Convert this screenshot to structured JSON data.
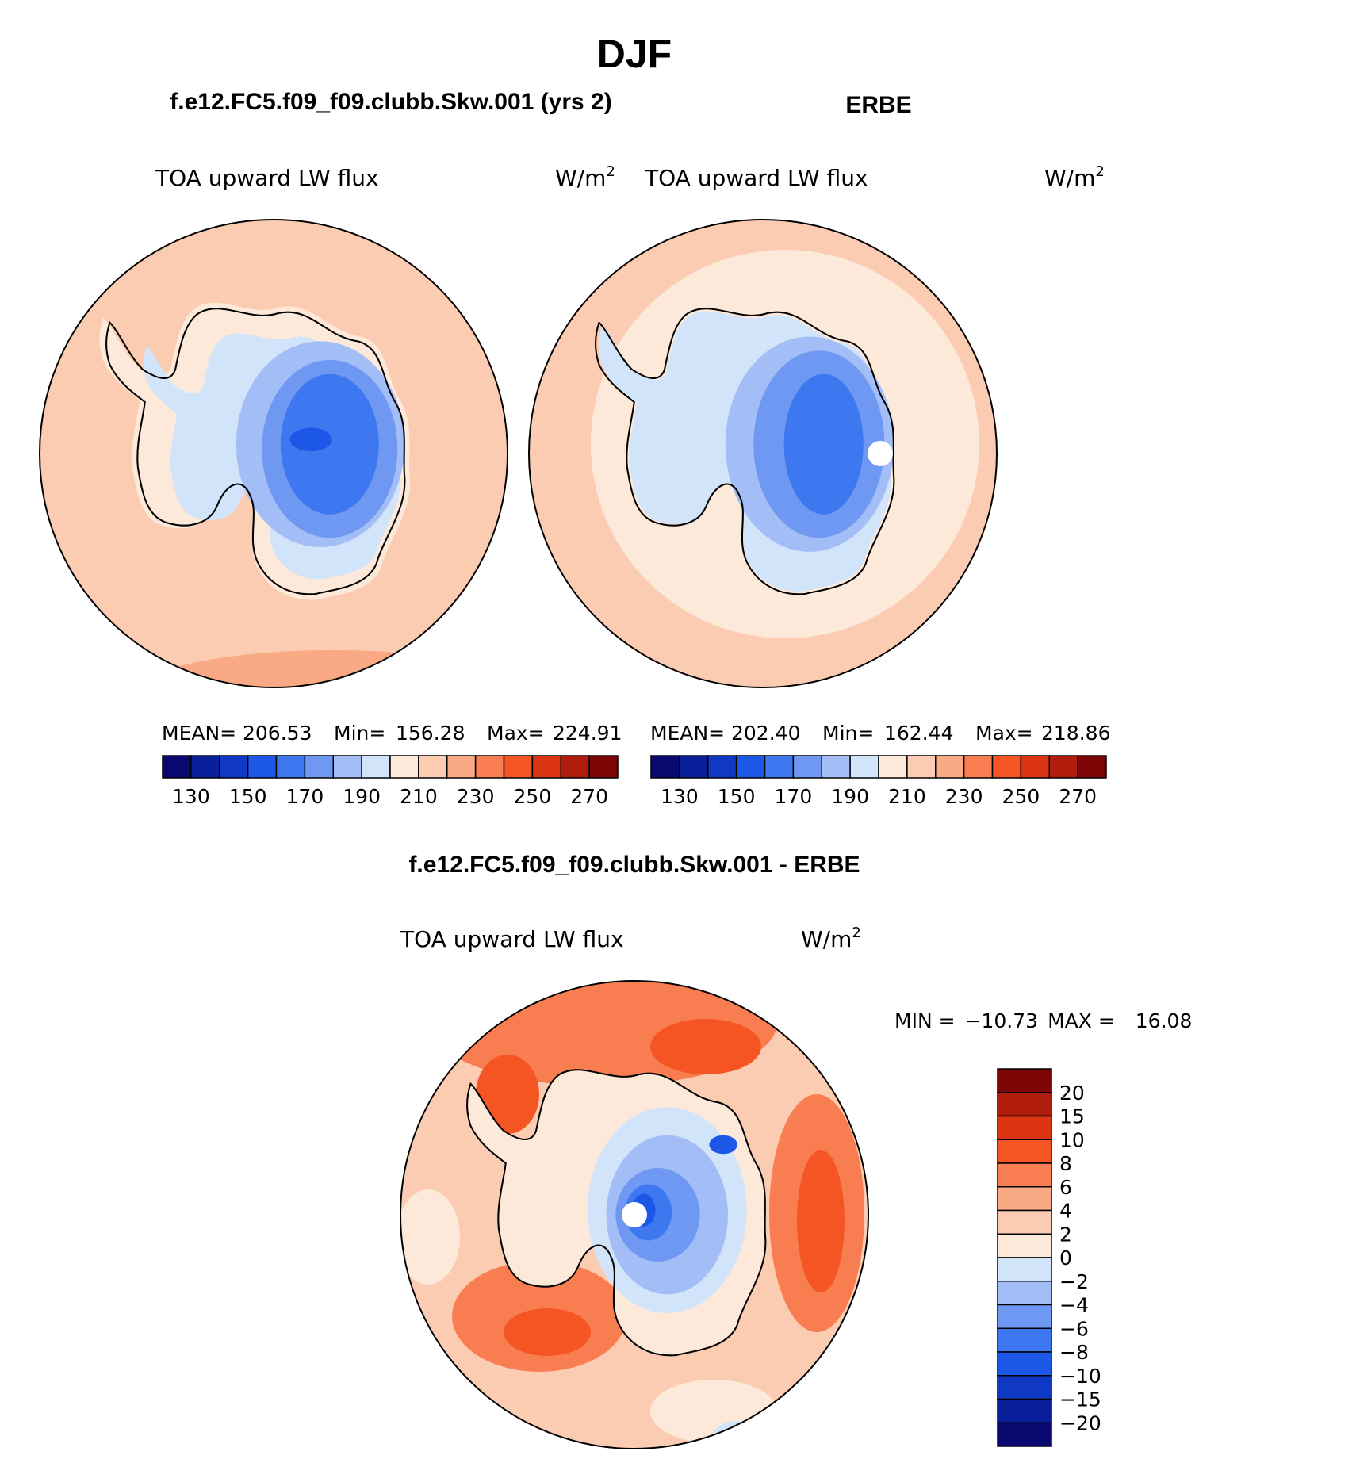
{
  "figure": {
    "title": "DJF"
  },
  "chart_data": [
    {
      "type": "heatmap",
      "projection": "south-polar-stereographic",
      "title": "f.e12.FC5.f09_f09.clubb.Skw.001 (yrs 2)",
      "variable": "TOA upward LW flux",
      "units_base": "W/m",
      "units_exp": "2",
      "stats": {
        "mean_label": "MEAN=",
        "mean": "206.53",
        "min_label": "Min=",
        "min": "156.28",
        "max_label": "Max=",
        "max": "224.91"
      },
      "colorbar": {
        "levels": [
          "130",
          "150",
          "170",
          "190",
          "210",
          "230",
          "250",
          "270"
        ],
        "colors": [
          "#08086e",
          "#0a1f9a",
          "#0f38c4",
          "#1d57e8",
          "#3d78f0",
          "#6f98f3",
          "#a3bdf6",
          "#d2e4fa",
          "#fde9d9",
          "#fbccb2",
          "#f9a984",
          "#f87e52",
          "#f55522",
          "#db3513",
          "#b01d0c",
          "#7d0505"
        ]
      },
      "field_levels": {
        "ocean": "210-220",
        "coast": "200-210",
        "interior_min": "150-160"
      }
    },
    {
      "type": "heatmap",
      "projection": "south-polar-stereographic",
      "title": "ERBE",
      "variable": "TOA upward LW flux",
      "units_base": "W/m",
      "units_exp": "2",
      "stats": {
        "mean_label": "MEAN=",
        "mean": "202.40",
        "min_label": "Min=",
        "min": "162.44",
        "max_label": "Max=",
        "max": "218.86"
      },
      "colorbar": {
        "levels": [
          "130",
          "150",
          "170",
          "190",
          "210",
          "230",
          "250",
          "270"
        ],
        "colors": [
          "#08086e",
          "#0a1f9a",
          "#0f38c4",
          "#1d57e8",
          "#3d78f0",
          "#6f98f3",
          "#a3bdf6",
          "#d2e4fa",
          "#fde9d9",
          "#fbccb2",
          "#f9a984",
          "#f87e52",
          "#f55522",
          "#db3513",
          "#b01d0c",
          "#7d0505"
        ]
      },
      "field_levels": {
        "ocean": "200-220",
        "coast": "190-200",
        "interior_min": "160-170"
      }
    },
    {
      "type": "heatmap",
      "projection": "south-polar-stereographic",
      "title": "f.e12.FC5.f09_f09.clubb.Skw.001 - ERBE",
      "variable": "TOA upward LW flux",
      "units_base": "W/m",
      "units_exp": "2",
      "stats": {
        "min_label": "MIN =",
        "min": "−10.73",
        "max_label": "MAX =",
        "max": "16.08"
      },
      "colorbar": {
        "levels": [
          "20",
          "15",
          "10",
          "8",
          "6",
          "4",
          "2",
          "0",
          "−2",
          "−4",
          "−6",
          "−8",
          "−10",
          "−15",
          "−20"
        ],
        "colors": [
          "#7d0505",
          "#b01d0c",
          "#db3513",
          "#f55522",
          "#f87e52",
          "#f9a984",
          "#fbccb2",
          "#fde9d9",
          "#d2e4fa",
          "#a3bdf6",
          "#6f98f3",
          "#3d78f0",
          "#1d57e8",
          "#0f38c4",
          "#0a1f9a",
          "#08086e"
        ]
      },
      "field_levels": {
        "ocean": "4-15",
        "continent_interior": "−10-0"
      }
    }
  ]
}
